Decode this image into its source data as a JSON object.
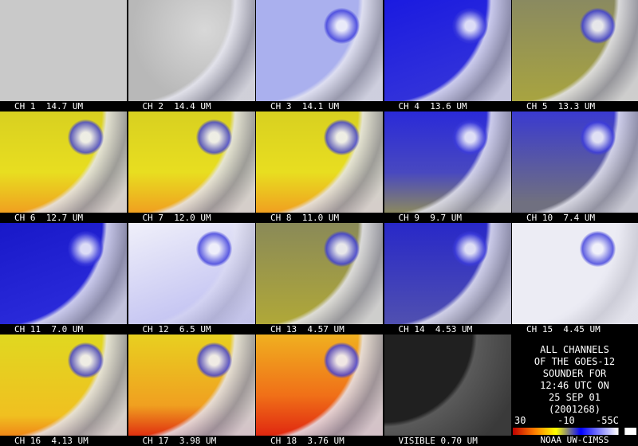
{
  "panels": [
    {
      "label": "CH 1  14.7 UM"
    },
    {
      "label": "CH 2  14.4 UM"
    },
    {
      "label": "CH 3  14.1 UM"
    },
    {
      "label": "CH 4  13.6 UM"
    },
    {
      "label": "CH 5  13.3 UM"
    },
    {
      "label": "CH 6  12.7 UM"
    },
    {
      "label": "CH 7  12.0 UM"
    },
    {
      "label": "CH 8  11.0 UM"
    },
    {
      "label": "CH 9  9.7 UM"
    },
    {
      "label": "CH 10  7.4 UM"
    },
    {
      "label": "CH 11  7.0 UM"
    },
    {
      "label": "CH 12  6.5 UM"
    },
    {
      "label": "CH 13  4.57 UM"
    },
    {
      "label": "CH 14  4.53 UM"
    },
    {
      "label": "CH 15  4.45 UM"
    },
    {
      "label": "CH 16  4.13 UM"
    },
    {
      "label": "CH 17  3.98 UM"
    },
    {
      "label": "CH 18  3.76 UM"
    },
    {
      "label": "VISIBLE 0.70 UM"
    }
  ],
  "legend": {
    "lines": [
      "ALL CHANNELS",
      "OF THE GOES-12",
      "SOUNDER FOR",
      "12:46 UTC ON",
      "25 SEP 01",
      "(2001268)"
    ],
    "scale": [
      "30",
      "-10",
      "-55C"
    ],
    "credit": "NOAA UW-CIMSS"
  }
}
